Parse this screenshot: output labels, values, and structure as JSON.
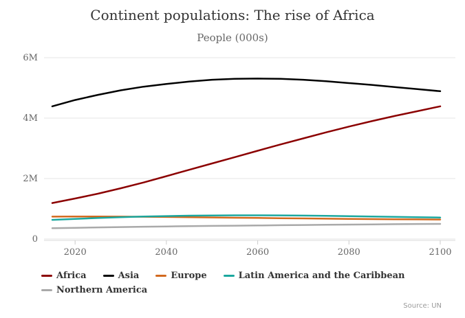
{
  "chart_data": {
    "type": "line",
    "title": "Continent populations: The rise of Africa",
    "subtitle": "People (000s)",
    "source": "Source: UN",
    "xlabel": "",
    "ylabel": "",
    "ylim": [
      0,
      6000000
    ],
    "grid": "horizontal",
    "legend_position": "bottom",
    "x": [
      2015,
      2020,
      2025,
      2030,
      2035,
      2040,
      2045,
      2050,
      2055,
      2060,
      2065,
      2070,
      2075,
      2080,
      2085,
      2090,
      2095,
      2100
    ],
    "xticks": [
      {
        "value": 2020,
        "label": "2020"
      },
      {
        "value": 2040,
        "label": "2040"
      },
      {
        "value": 2060,
        "label": "2060"
      },
      {
        "value": 2080,
        "label": "2080"
      },
      {
        "value": 2100,
        "label": "2100"
      }
    ],
    "yticks": [
      {
        "value": 0,
        "label": "0"
      },
      {
        "value": 2000000,
        "label": "2M"
      },
      {
        "value": 4000000,
        "label": "4M"
      },
      {
        "value": 6000000,
        "label": "6M"
      }
    ],
    "series": [
      {
        "name": "Africa",
        "color": "#8B0000",
        "values": [
          1190000,
          1340000,
          1500000,
          1680000,
          1870000,
          2080000,
          2290000,
          2500000,
          2710000,
          2920000,
          3130000,
          3330000,
          3530000,
          3720000,
          3900000,
          4070000,
          4230000,
          4390000
        ]
      },
      {
        "name": "Asia",
        "color": "#000000",
        "values": [
          4390000,
          4600000,
          4770000,
          4920000,
          5040000,
          5130000,
          5210000,
          5270000,
          5300000,
          5310000,
          5300000,
          5270000,
          5220000,
          5160000,
          5100000,
          5030000,
          4960000,
          4890000
        ]
      },
      {
        "name": "Europe",
        "color": "#D2691E",
        "values": [
          740000,
          744000,
          744000,
          741000,
          736000,
          729000,
          721000,
          713000,
          705000,
          697000,
          689000,
          681000,
          673000,
          666000,
          660000,
          654000,
          649000,
          645000
        ]
      },
      {
        "name": "Latin America and the Caribbean",
        "color": "#1AA79E",
        "values": [
          634000,
          666000,
          695000,
          721000,
          743000,
          760000,
          772000,
          780000,
          784000,
          784000,
          781000,
          774000,
          765000,
          755000,
          744000,
          733000,
          722000,
          712000
        ]
      },
      {
        "name": "Northern America",
        "color": "#A9A9A9",
        "values": [
          358000,
          371000,
          383000,
          396000,
          407000,
          417000,
          426000,
          433000,
          441000,
          448000,
          456000,
          463000,
          470000,
          477000,
          484000,
          491000,
          497000,
          500000
        ]
      }
    ]
  }
}
